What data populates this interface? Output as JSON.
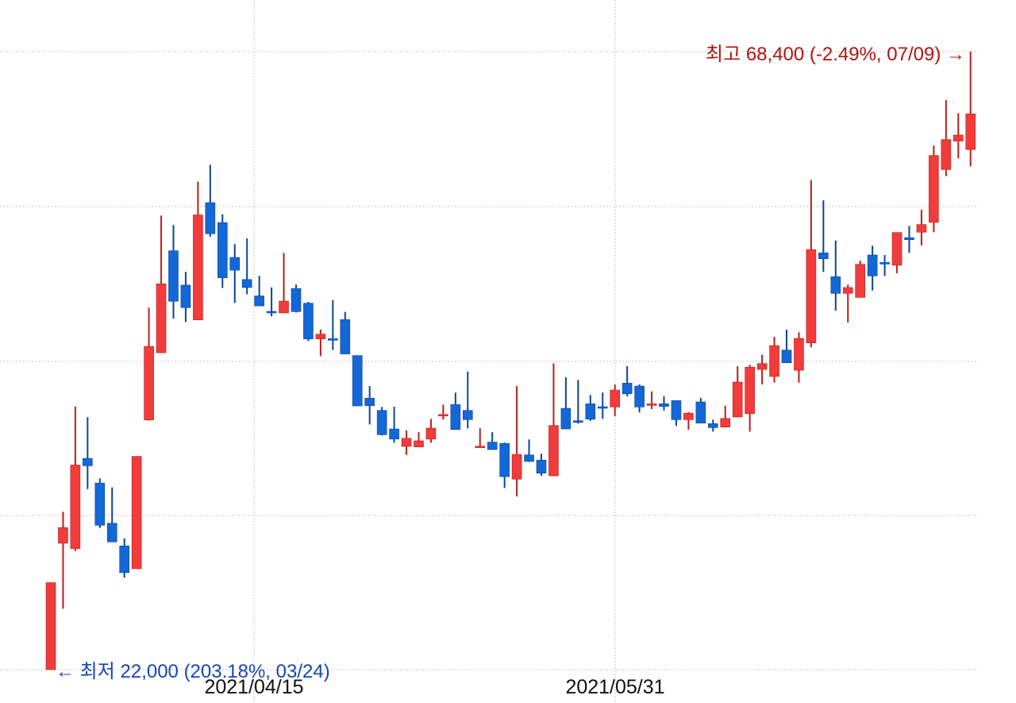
{
  "chart_data": {
    "type": "candlestick",
    "title": "",
    "xlabel": "",
    "ylabel": "",
    "ylim": [
      22000,
      68400
    ],
    "grid": true,
    "colors": {
      "up": "#f23b3b",
      "up_wick": "#b8201c",
      "down": "#1467d6",
      "down_wick": "#0b4593",
      "high_text": "#b3140f",
      "low_text": "#1746b5"
    },
    "x_tick_labels": [
      "2021/04/15",
      "2021/05/31"
    ],
    "annotations": {
      "high": "최고 68,400 (-2.49%, 07/09) →",
      "low": "← 최저 22,000 (203.18%, 03/24)"
    },
    "ohlc_order": [
      "open",
      "high",
      "low",
      "close"
    ],
    "candles": [
      [
        22000,
        28530,
        22000,
        28530
      ],
      [
        31490,
        33850,
        26570,
        32670
      ],
      [
        31090,
        41750,
        30910,
        37360
      ],
      [
        37860,
        40950,
        35550,
        37310
      ],
      [
        36010,
        36360,
        32640,
        32840
      ],
      [
        32990,
        35680,
        31590,
        31590
      ],
      [
        31290,
        31860,
        28900,
        29280
      ],
      [
        29580,
        38010,
        29580,
        38010
      ],
      [
        40750,
        49180,
        40700,
        46270
      ],
      [
        45790,
        56090,
        45790,
        50970
      ],
      [
        53450,
        55380,
        48360,
        49660
      ],
      [
        50870,
        51870,
        48100,
        49180
      ],
      [
        48260,
        58650,
        48260,
        56140
      ],
      [
        57060,
        59900,
        54500,
        54730
      ],
      [
        55560,
        56190,
        50660,
        51420
      ],
      [
        52950,
        53950,
        49530,
        51990
      ],
      [
        51290,
        54380,
        50190,
        50690
      ],
      [
        50060,
        51570,
        49310,
        49310
      ],
      [
        48900,
        50700,
        48520,
        48880
      ],
      [
        48780,
        53290,
        48780,
        49670
      ],
      [
        50610,
        50910,
        48820,
        48880
      ],
      [
        49510,
        49610,
        46670,
        46830
      ],
      [
        46830,
        47530,
        45540,
        47190
      ],
      [
        46850,
        49750,
        45990,
        46830
      ],
      [
        48280,
        48860,
        45700,
        45700
      ],
      [
        45580,
        45580,
        41800,
        41800
      ],
      [
        42380,
        43290,
        40410,
        41820
      ],
      [
        41460,
        41720,
        39580,
        39640
      ],
      [
        40070,
        41740,
        39040,
        39310
      ],
      [
        38760,
        39970,
        38120,
        39370
      ],
      [
        38720,
        39830,
        38720,
        39180
      ],
      [
        39310,
        40830,
        39040,
        40130
      ],
      [
        41100,
        41900,
        40770,
        41160
      ],
      [
        41900,
        42800,
        40030,
        40030
      ],
      [
        41460,
        44380,
        40110,
        40770
      ],
      [
        38750,
        40130,
        38750,
        38780
      ],
      [
        39080,
        39830,
        38520,
        38520
      ],
      [
        38980,
        39040,
        35640,
        36490
      ],
      [
        36300,
        43290,
        35000,
        38160
      ],
      [
        38120,
        39280,
        37590,
        37630
      ],
      [
        37730,
        38220,
        36550,
        36750
      ],
      [
        36550,
        45000,
        36550,
        40330
      ],
      [
        41620,
        43950,
        40070,
        40070
      ],
      [
        40690,
        43750,
        40470,
        40670
      ],
      [
        41960,
        42620,
        40670,
        40800
      ],
      [
        41740,
        42800,
        40830,
        41720
      ],
      [
        41720,
        43410,
        41030,
        42990
      ],
      [
        43510,
        44780,
        42520,
        42710
      ],
      [
        43290,
        43410,
        41310,
        41720
      ],
      [
        41940,
        42890,
        41560,
        41960
      ],
      [
        41960,
        42520,
        41460,
        41760
      ],
      [
        42200,
        42200,
        40310,
        40770
      ],
      [
        40770,
        41320,
        40010,
        41260
      ],
      [
        42100,
        42400,
        40510,
        40510
      ],
      [
        40470,
        40770,
        39870,
        40170
      ],
      [
        40210,
        41820,
        40210,
        40860
      ],
      [
        40970,
        44780,
        40970,
        43590
      ],
      [
        41220,
        44880,
        39870,
        44710
      ],
      [
        44540,
        45640,
        43410,
        44980
      ],
      [
        44010,
        46990,
        43550,
        46330
      ],
      [
        45990,
        47530,
        45040,
        45040
      ],
      [
        44480,
        47330,
        43550,
        46870
      ],
      [
        46530,
        58760,
        46200,
        53530
      ],
      [
        53290,
        57230,
        51860,
        52850
      ],
      [
        51500,
        54220,
        48960,
        50250
      ],
      [
        50250,
        50910,
        48060,
        50690
      ],
      [
        49950,
        52700,
        49950,
        52430
      ],
      [
        53130,
        53830,
        50470,
        51560
      ],
      [
        52570,
        53130,
        51560,
        52550
      ],
      [
        52360,
        54820,
        51760,
        54820
      ],
      [
        54430,
        55320,
        53290,
        54280
      ],
      [
        54840,
        56530,
        53850,
        55420
      ],
      [
        55580,
        61340,
        54840,
        60600
      ],
      [
        59550,
        64760,
        59050,
        61800
      ],
      [
        61680,
        63770,
        60390,
        62140
      ],
      [
        61050,
        68400,
        59790,
        63730
      ]
    ]
  }
}
